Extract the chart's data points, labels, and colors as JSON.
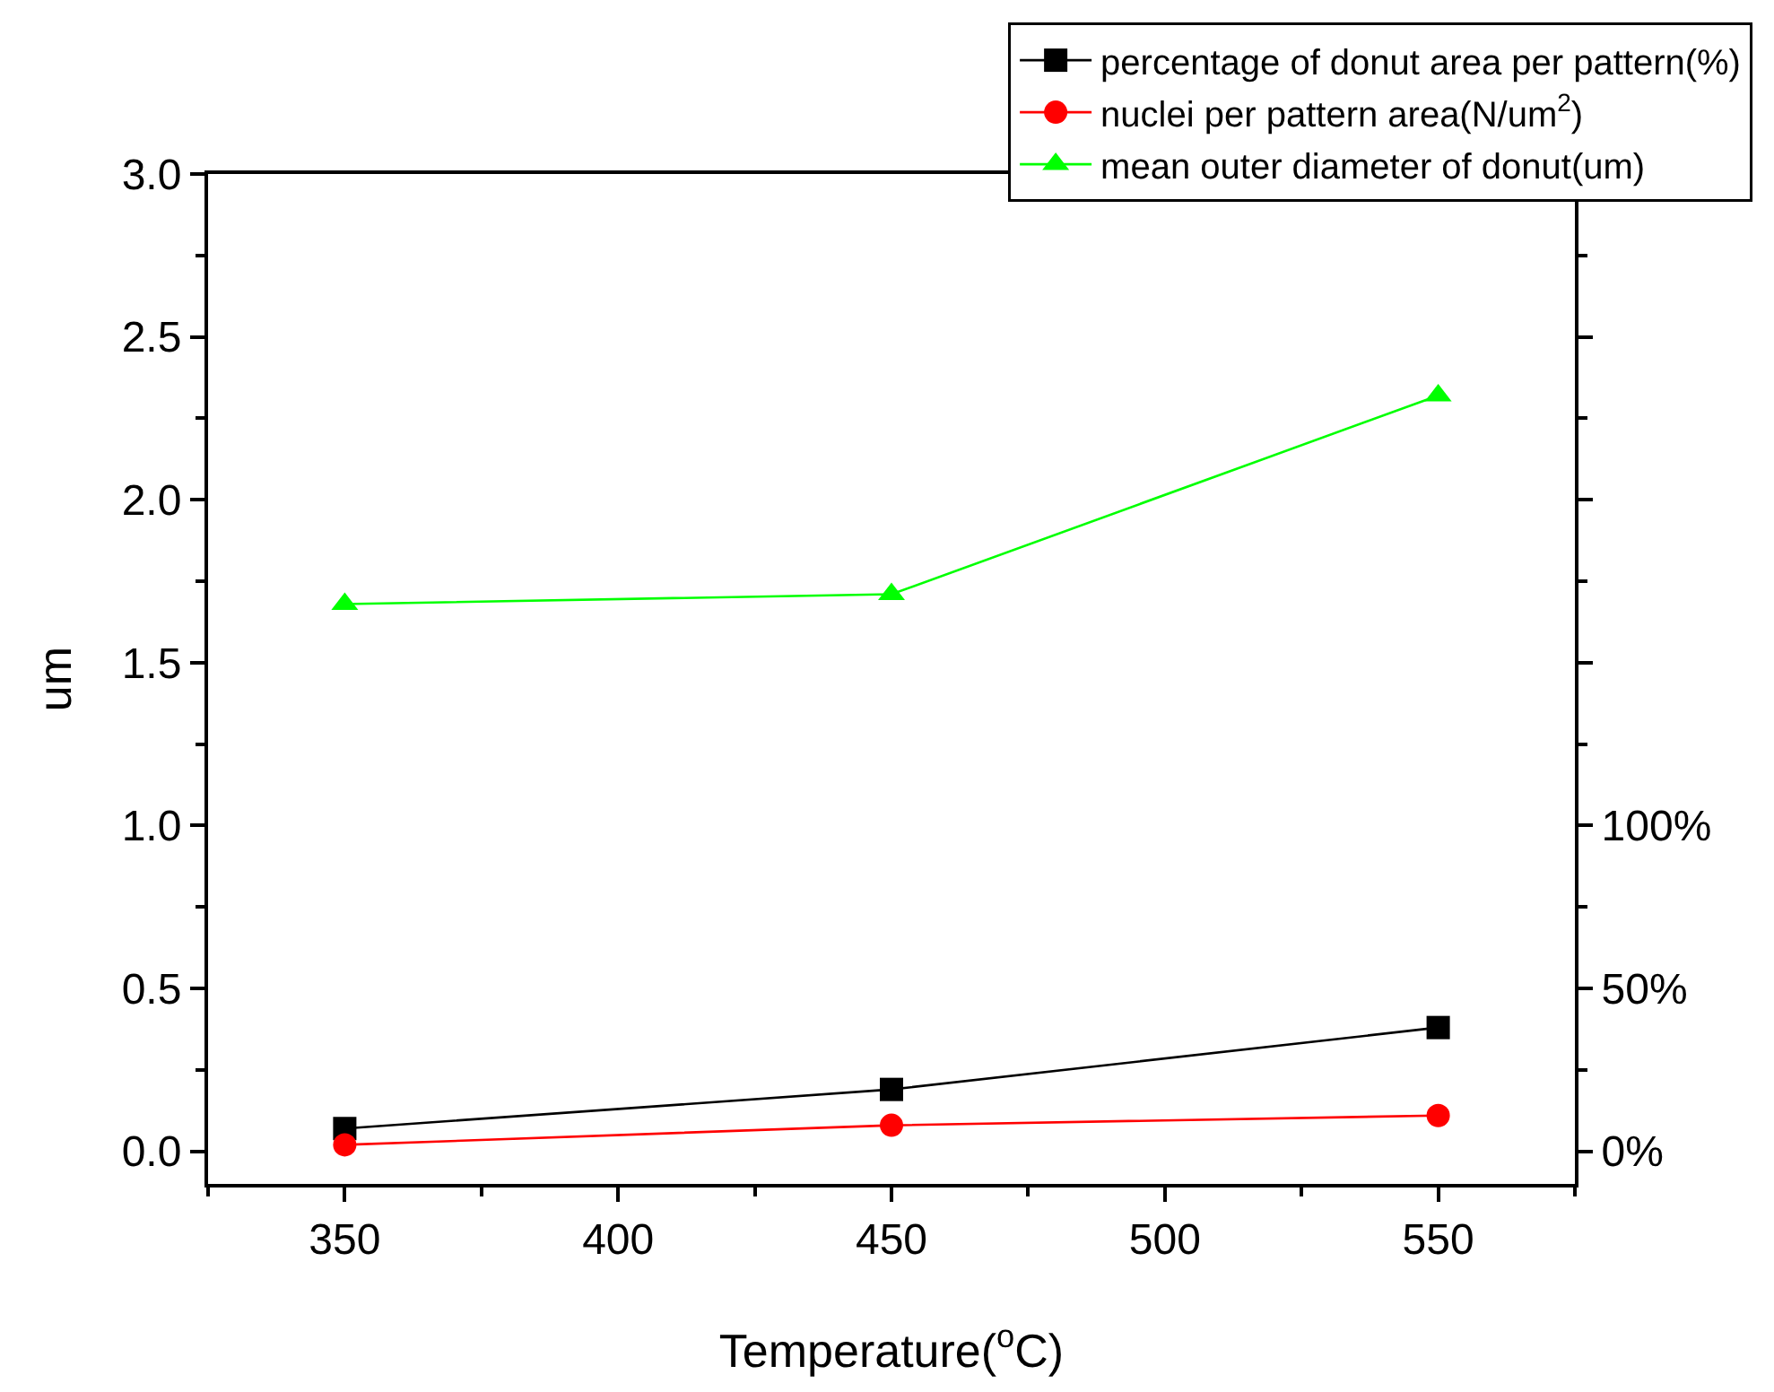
{
  "chart_data": {
    "type": "line",
    "xlabel": "Temperature($^{o}$C)",
    "ylabel": "um",
    "x": [
      350,
      450,
      550
    ],
    "series": [
      {
        "name": "percentage of donut area per pattern(%)",
        "color": "#000000",
        "marker": "square",
        "values": [
          0.07,
          0.19,
          0.38
        ]
      },
      {
        "name": "nuclei per pattern area(N/um$^{2}$)",
        "color": "#ff0000",
        "marker": "circle",
        "values": [
          0.02,
          0.08,
          0.11
        ]
      },
      {
        "name": "mean outer diameter of donut(um)",
        "color": "#00ff00",
        "marker": "triangle",
        "values": [
          1.68,
          1.71,
          2.32
        ]
      }
    ],
    "xlim": [
      325,
      575
    ],
    "xticks": [
      350,
      400,
      450,
      500,
      550
    ],
    "ylim": [
      -0.1,
      3.0
    ],
    "yticks": [
      {
        "value": 0,
        "label": "0.0"
      },
      0.5,
      {
        "value": 1,
        "label": "1.0"
      },
      1.5,
      {
        "value": 2,
        "label": "2.0"
      },
      2.5,
      {
        "value": 3,
        "label": "3.0"
      }
    ],
    "y2lim": [
      -10,
      300
    ],
    "y2ticks": [
      {
        "value": 0,
        "label": "0%"
      },
      {
        "value": 50,
        "label": "50%"
      },
      {
        "value": 100,
        "label": "100%"
      },
      {
        "value": 150,
        "label": null
      },
      {
        "value": 200,
        "label": null
      },
      {
        "value": 250,
        "label": null
      }
    ],
    "legend": "top right",
    "line_style": "solid"
  }
}
